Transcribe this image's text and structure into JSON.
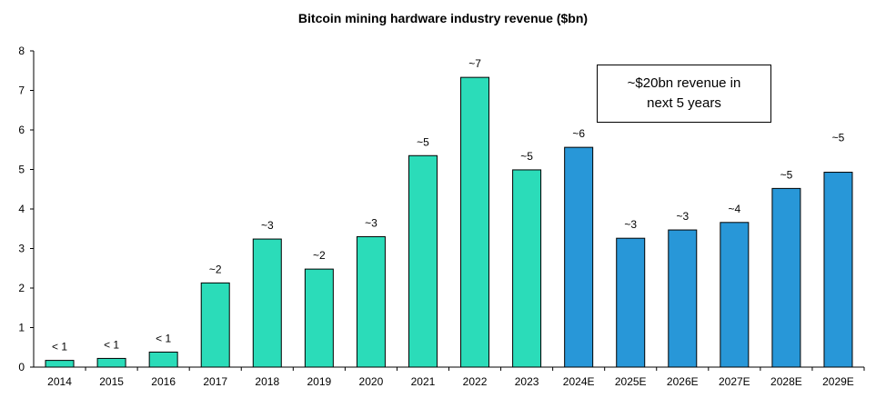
{
  "chart_data": {
    "type": "bar",
    "title": "Bitcoin mining hardware industry revenue ($bn)",
    "xlabel": "",
    "ylabel": "",
    "ylim": [
      0,
      8
    ],
    "yticks": [
      "0",
      "1",
      "2",
      "3",
      "4",
      "5",
      "6",
      "7",
      "8"
    ],
    "categories": [
      "2014",
      "2015",
      "2016",
      "2017",
      "2018",
      "2019",
      "2020",
      "2021",
      "2022",
      "2023",
      "2024E",
      "2025E",
      "2026E",
      "2027E",
      "2028E",
      "2029E"
    ],
    "values": [
      0.17,
      0.22,
      0.38,
      2.13,
      3.24,
      2.48,
      3.3,
      5.35,
      7.33,
      4.99,
      5.56,
      3.26,
      3.47,
      3.66,
      4.52,
      4.93
    ],
    "data_labels": [
      "< 1",
      "< 1",
      "< 1",
      "~2",
      "~3",
      "~2",
      "~3",
      "~5",
      "~7",
      "~5",
      "~6",
      "~3",
      "~3",
      "~4",
      "~5",
      "~5"
    ],
    "series_kind": [
      "actual",
      "actual",
      "actual",
      "actual",
      "actual",
      "actual",
      "actual",
      "actual",
      "actual",
      "actual",
      "estimate",
      "estimate",
      "estimate",
      "estimate",
      "estimate",
      "estimate"
    ],
    "colors": {
      "actual": "#2bdcb9",
      "estimate": "#2897d8",
      "outline": "#000000"
    },
    "annotation": "~$20bn revenue in next 5 years",
    "grid": false
  }
}
